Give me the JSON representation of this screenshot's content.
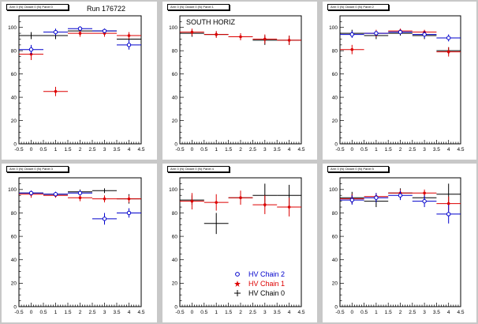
{
  "run_label": "Run 176722",
  "colors": {
    "chain2": "#0000cc",
    "chain1": "#dd0000",
    "chain0": "#000000"
  },
  "legend": [
    {
      "label": "HV Chain 2",
      "color": "#0000cc",
      "marker": "open-circle"
    },
    {
      "label": "HV Chain 1",
      "color": "#dd0000",
      "marker": "star"
    },
    {
      "label": "HV Chain 0",
      "color": "#000000",
      "marker": "cross"
    }
  ],
  "pads": [
    {
      "title": "Arm 0 (N) Octant 0 (N) Panel 0"
    },
    {
      "title": "Arm 0 (N) Octant 0 (N) Panel 1",
      "annotation": "SOUTH HORIZ"
    },
    {
      "title": "Arm 0 (N) Octant 0 (N) Panel 2"
    },
    {
      "title": "Arm 0 (N) Octant 0 (N) Panel 3"
    },
    {
      "title": "Arm 0 (N) Octant 0 (N) Panel 4"
    },
    {
      "title": "Arm 0 (N) Octant 0 (N) Panel 5"
    }
  ],
  "chart_data": [
    {
      "type": "scatter",
      "title": "Arm 0 (N) Octant 0 (N) Panel 0",
      "xlim": [
        -0.5,
        4.5
      ],
      "ylim": [
        0,
        110
      ],
      "xticks": [
        "-0.5",
        "0",
        "0.5",
        "1",
        "1.5",
        "2",
        "2.5",
        "3",
        "3.5",
        "4",
        "4.5"
      ],
      "yticks": [
        "0",
        "20",
        "40",
        "60",
        "80",
        "100"
      ],
      "series": [
        {
          "color": "#000000",
          "points": [
            [
              0,
              93,
              0.5,
              3
            ],
            [
              1,
              93,
              0.5,
              3
            ],
            [
              2,
              97,
              0.5,
              2
            ],
            [
              3,
              97,
              0.5,
              2
            ],
            [
              4,
              90,
              0.5,
              3
            ]
          ]
        },
        {
          "color": "#dd0000",
          "points": [
            [
              0,
              77,
              0.5,
              5
            ],
            [
              1,
              45,
              0.5,
              4
            ],
            [
              2,
              95,
              0.5,
              3
            ],
            [
              3,
              95,
              0.5,
              3
            ],
            [
              4,
              93,
              0.5,
              3
            ]
          ]
        },
        {
          "color": "#0000cc",
          "points": [
            [
              0,
              81,
              0.5,
              4
            ],
            [
              1,
              96,
              0.5,
              3
            ],
            [
              2,
              99,
              0.5,
              2
            ],
            [
              3,
              97,
              0.5,
              2
            ],
            [
              4,
              85,
              0.5,
              4
            ]
          ]
        }
      ]
    },
    {
      "type": "scatter",
      "title": "Arm 0 (N) Octant 0 (N) Panel 1",
      "xlim": [
        -0.5,
        4.5
      ],
      "ylim": [
        0,
        110
      ],
      "xticks": [
        "-0.5",
        "0",
        "0.5",
        "1",
        "1.5",
        "2",
        "2.5",
        "3",
        "3.5",
        "4",
        "4.5"
      ],
      "yticks": [
        "0",
        "20",
        "40",
        "60",
        "80",
        "100"
      ],
      "series": [
        {
          "color": "#000000",
          "points": [
            [
              0,
              95,
              0.5,
              3
            ],
            [
              1,
              94,
              0.5,
              2
            ],
            [
              2,
              92,
              0.5,
              3
            ],
            [
              3,
              89,
              0.5,
              4
            ],
            [
              4,
              89,
              0.5,
              4
            ]
          ]
        },
        {
          "color": "#dd0000",
          "points": [
            [
              0,
              96,
              0.5,
              3
            ],
            [
              1,
              94,
              0.5,
              3
            ],
            [
              2,
              92,
              0.5,
              3
            ],
            [
              3,
              90,
              0.5,
              4
            ],
            [
              4,
              89,
              0.5,
              4
            ]
          ]
        }
      ]
    },
    {
      "type": "scatter",
      "title": "Arm 0 (N) Octant 0 (N) Panel 2",
      "xlim": [
        -0.5,
        4.5
      ],
      "ylim": [
        0,
        110
      ],
      "xticks": [
        "-0.5",
        "0",
        "0.5",
        "1",
        "1.5",
        "2",
        "2.5",
        "3",
        "3.5",
        "4",
        "4.5"
      ],
      "yticks": [
        "0",
        "20",
        "40",
        "60",
        "80",
        "100"
      ],
      "series": [
        {
          "color": "#000000",
          "points": [
            [
              0,
              95,
              0.5,
              3
            ],
            [
              1,
              93,
              0.5,
              3
            ],
            [
              2,
              95,
              0.5,
              2
            ],
            [
              3,
              93,
              0.5,
              3
            ],
            [
              4,
              80,
              0.5,
              3
            ]
          ]
        },
        {
          "color": "#dd0000",
          "points": [
            [
              0,
              81,
              0.5,
              4
            ],
            [
              1,
              95,
              0.5,
              3
            ],
            [
              2,
              97,
              0.5,
              2
            ],
            [
              3,
              96,
              0.5,
              2
            ],
            [
              4,
              79,
              0.5,
              4
            ]
          ]
        },
        {
          "color": "#0000cc",
          "points": [
            [
              0,
              94,
              0.5,
              3
            ],
            [
              1,
              95,
              0.5,
              2
            ],
            [
              2,
              96,
              0.5,
              2
            ],
            [
              3,
              94,
              0.5,
              3
            ],
            [
              4,
              91,
              0.5,
              3
            ]
          ]
        }
      ]
    },
    {
      "type": "scatter",
      "title": "Arm 0 (N) Octant 0 (N) Panel 3",
      "xlim": [
        -0.5,
        4.5
      ],
      "ylim": [
        0,
        110
      ],
      "xticks": [
        "-0.5",
        "0",
        "0.5",
        "1",
        "1.5",
        "2",
        "2.5",
        "3",
        "3.5",
        "4",
        "4.5"
      ],
      "yticks": [
        "0",
        "20",
        "40",
        "60",
        "80",
        "100"
      ],
      "series": [
        {
          "color": "#000000",
          "points": [
            [
              0,
              97,
              0.5,
              2
            ],
            [
              1,
              96,
              0.5,
              2
            ],
            [
              2,
              98,
              0.5,
              2
            ],
            [
              3,
              99,
              0.5,
              2
            ],
            [
              4,
              92,
              0.5,
              4
            ]
          ]
        },
        {
          "color": "#dd0000",
          "points": [
            [
              0,
              96,
              0.5,
              3
            ],
            [
              1,
              95,
              0.5,
              2
            ],
            [
              2,
              93,
              0.5,
              3
            ],
            [
              3,
              92,
              0.5,
              3
            ],
            [
              4,
              92,
              0.5,
              3
            ]
          ]
        },
        {
          "color": "#0000cc",
          "points": [
            [
              0,
              97,
              0.5,
              2
            ],
            [
              1,
              96,
              0.5,
              2
            ],
            [
              2,
              97,
              0.5,
              2
            ],
            [
              3,
              75,
              0.5,
              5
            ],
            [
              4,
              80,
              0.5,
              4
            ]
          ]
        }
      ]
    },
    {
      "type": "scatter",
      "title": "Arm 0 (N) Octant 0 (N) Panel 4",
      "xlim": [
        -0.5,
        4.5
      ],
      "ylim": [
        0,
        110
      ],
      "xticks": [
        "-0.5",
        "0",
        "0.5",
        "1",
        "1.5",
        "2",
        "2.5",
        "3",
        "3.5",
        "4",
        "4.5"
      ],
      "yticks": [
        "0",
        "20",
        "40",
        "60",
        "80",
        "100"
      ],
      "series": [
        {
          "color": "#000000",
          "points": [
            [
              0,
              91,
              0.5,
              4
            ],
            [
              1,
              71,
              0.5,
              9
            ],
            [
              2,
              93,
              0.5,
              5
            ],
            [
              3,
              95,
              0.5,
              10
            ],
            [
              4,
              95,
              0.5,
              9
            ]
          ]
        },
        {
          "color": "#dd0000",
          "points": [
            [
              0,
              90,
              0.5,
              7
            ],
            [
              1,
              89,
              0.5,
              7
            ],
            [
              2,
              93,
              0.5,
              6
            ],
            [
              3,
              87,
              0.5,
              8
            ],
            [
              4,
              85,
              0.5,
              8
            ]
          ]
        }
      ]
    },
    {
      "type": "scatter",
      "title": "Arm 0 (N) Octant 0 (N) Panel 5",
      "xlim": [
        -0.5,
        4.5
      ],
      "ylim": [
        0,
        110
      ],
      "xticks": [
        "-0.5",
        "0",
        "0.5",
        "1",
        "1.5",
        "2",
        "2.5",
        "3",
        "3.5",
        "4",
        "4.5"
      ],
      "yticks": [
        "0",
        "20",
        "40",
        "60",
        "80",
        "100"
      ],
      "series": [
        {
          "color": "#000000",
          "points": [
            [
              0,
              93,
              0.5,
              5
            ],
            [
              1,
              90,
              0.5,
              5
            ],
            [
              2,
              97,
              0.5,
              4
            ],
            [
              3,
              93,
              0.5,
              4
            ],
            [
              4,
              96,
              0.5,
              9
            ]
          ]
        },
        {
          "color": "#dd0000",
          "points": [
            [
              0,
              92,
              0.5,
              4
            ],
            [
              1,
              94,
              0.5,
              3
            ],
            [
              2,
              97,
              0.5,
              3
            ],
            [
              3,
              97,
              0.5,
              3
            ],
            [
              4,
              88,
              0.5,
              6
            ]
          ]
        },
        {
          "color": "#0000cc",
          "points": [
            [
              0,
              91,
              0.5,
              4
            ],
            [
              1,
              93,
              0.5,
              4
            ],
            [
              2,
              95,
              0.5,
              4
            ],
            [
              3,
              90,
              0.5,
              5
            ],
            [
              4,
              79,
              0.5,
              8
            ]
          ]
        }
      ]
    }
  ]
}
